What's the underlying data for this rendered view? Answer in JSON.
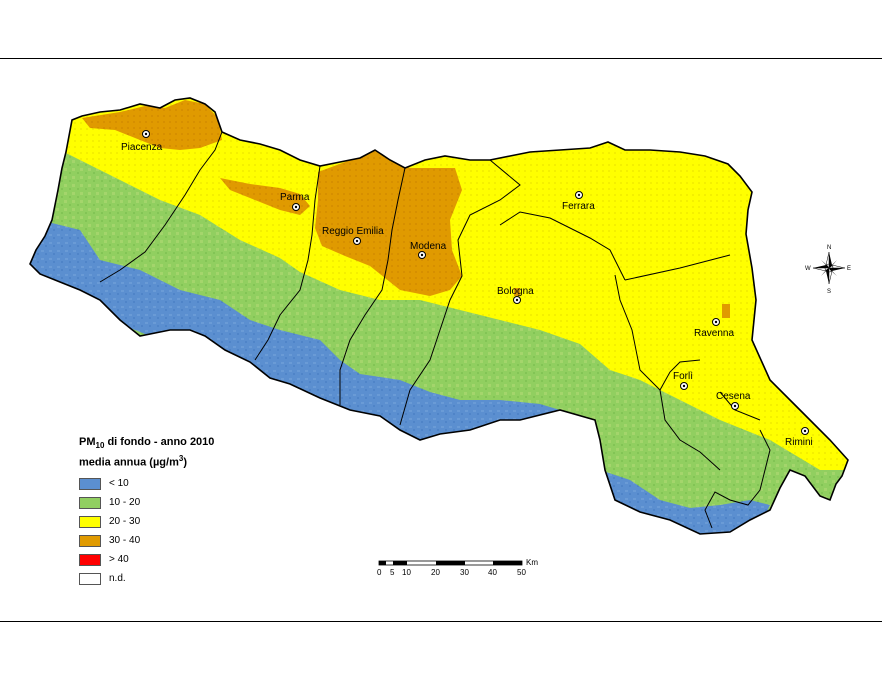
{
  "legend": {
    "title_pm": "PM",
    "title_sub": "10",
    "title_rest": " di fondo - anno 2010",
    "subtitle_pre": "media annua (µg/m",
    "subtitle_sup": "3",
    "subtitle_post": ")",
    "items": [
      {
        "label": "< 10",
        "color": "#5b8fd0"
      },
      {
        "label": "10 - 20",
        "color": "#91cf60"
      },
      {
        "label": "20 - 30",
        "color": "#ffff00"
      },
      {
        "label": "30 - 40",
        "color": "#e09a00"
      },
      {
        "label": "> 40",
        "color": "#ff0000"
      },
      {
        "label": "n.d.",
        "color": "#ffffff"
      }
    ]
  },
  "cities": {
    "piacenza": "Piacenza",
    "parma": "Parma",
    "reggio_emilia": "Reggio Emilia",
    "modena": "Modena",
    "ferrara": "Ferrara",
    "bologna": "Bologna",
    "ravenna": "Ravenna",
    "forli": "Forlì",
    "cesena": "Cesena",
    "rimini": "Rimini"
  },
  "scale_bar": {
    "unit": "Km",
    "ticks": [
      "0",
      "5",
      "10",
      "20",
      "30",
      "40",
      "50"
    ]
  },
  "compass": {
    "n": "N",
    "s": "S",
    "e": "E",
    "w": "W"
  }
}
